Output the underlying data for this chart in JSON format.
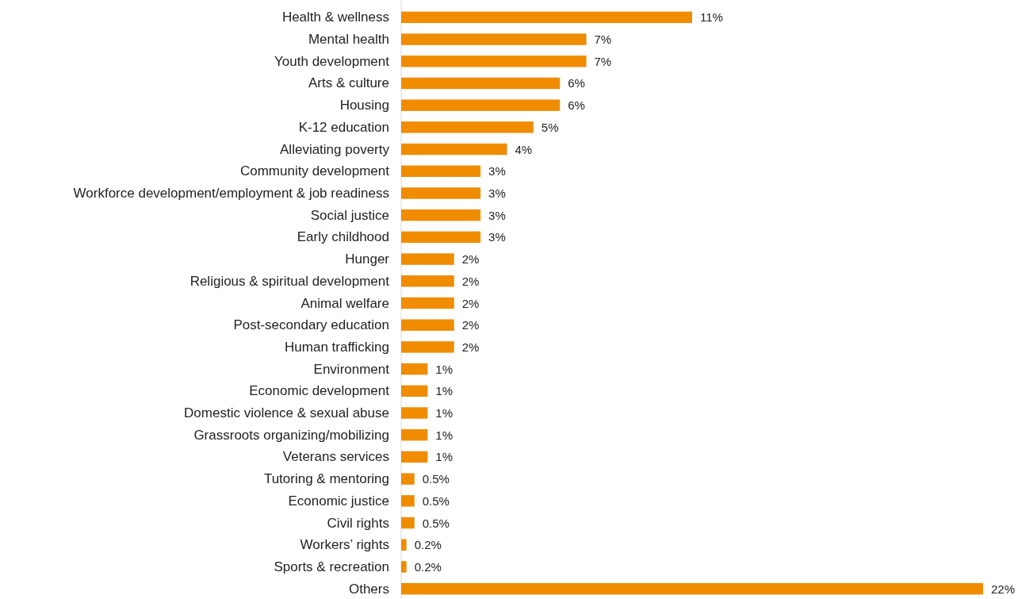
{
  "chart_data": {
    "type": "bar",
    "orientation": "horizontal",
    "categories": [
      "Health & wellness",
      "Mental health",
      "Youth development",
      "Arts & culture",
      "Housing",
      "K-12 education",
      "Alleviating poverty",
      "Community development",
      "Workforce development/employment & job readiness",
      "Social justice",
      "Early childhood",
      "Hunger",
      "Religious & spiritual development",
      "Animal welfare",
      "Post-secondary education",
      "Human trafficking",
      "Environment",
      "Economic development",
      "Domestic violence & sexual abuse",
      "Grassroots organizing/mobilizing",
      "Veterans services",
      "Tutoring & mentoring",
      "Economic justice",
      "Civil rights",
      "Workers’ rights",
      "Sports & recreation",
      "Others"
    ],
    "values": [
      11,
      7,
      7,
      6,
      6,
      5,
      4,
      3,
      3,
      3,
      3,
      2,
      2,
      2,
      2,
      2,
      1,
      1,
      1,
      1,
      1,
      0.5,
      0.5,
      0.5,
      0.2,
      0.2,
      22
    ],
    "value_labels": [
      "11%",
      "7%",
      "7%",
      "6%",
      "6%",
      "5%",
      "4%",
      "3%",
      "3%",
      "3%",
      "3%",
      "2%",
      "2%",
      "2%",
      "2%",
      "2%",
      "1%",
      "1%",
      "1%",
      "1%",
      "1%",
      "0.5%",
      "0.5%",
      "0.5%",
      "0.2%",
      "0.2%",
      "22%"
    ],
    "color": "#ef8c00"
  }
}
